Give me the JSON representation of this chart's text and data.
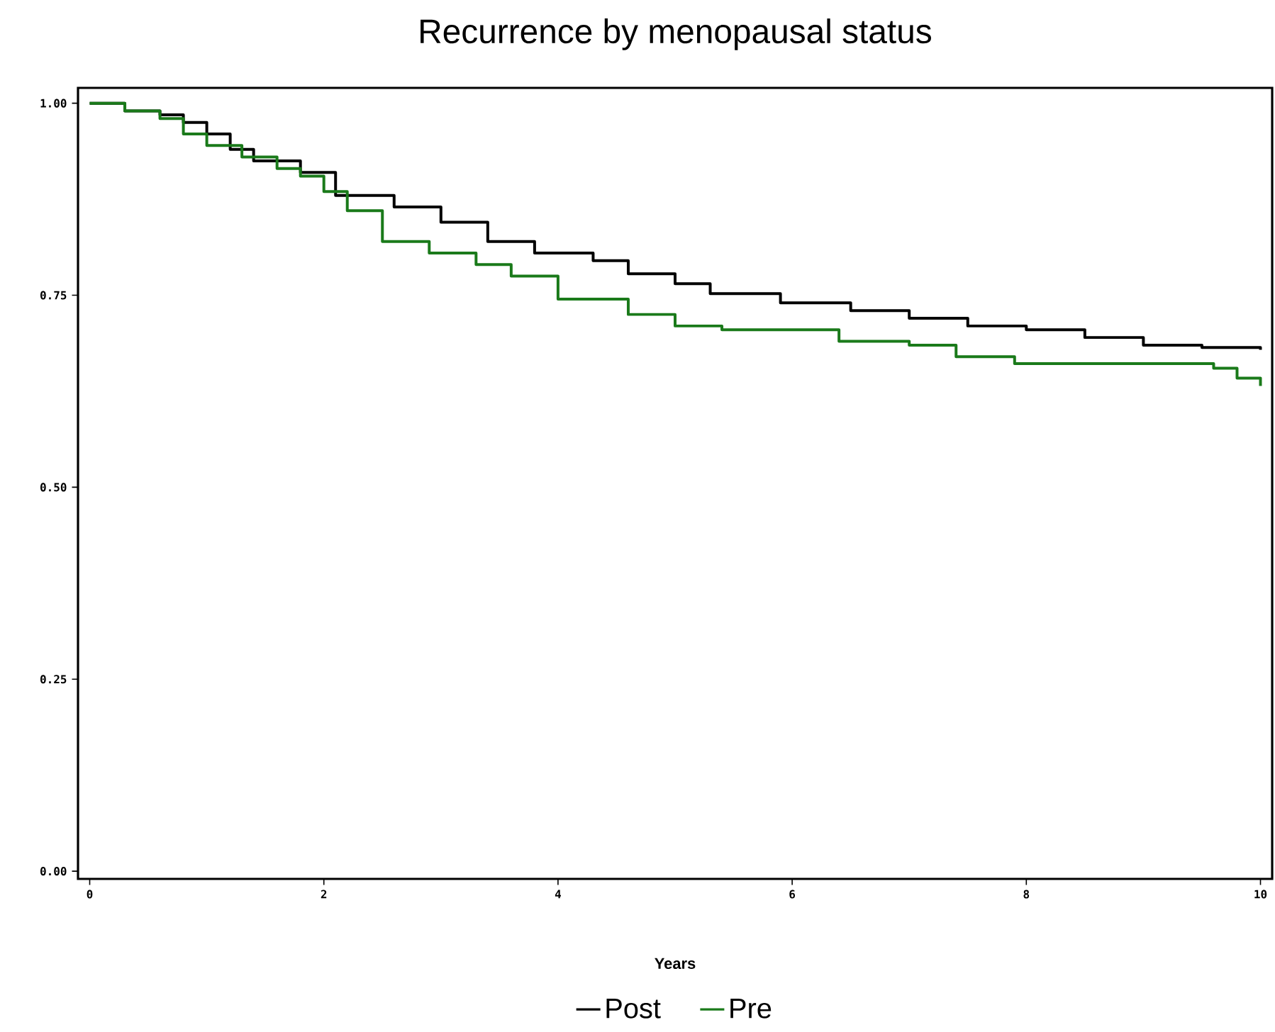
{
  "chart_data": {
    "type": "step",
    "title": "Recurrence by menopausal status",
    "xlabel": "Years",
    "xlim": [
      -0.1,
      10.1
    ],
    "ylim": [
      -0.01,
      1.02
    ],
    "xticks": [
      0,
      2,
      4,
      6,
      8,
      10
    ],
    "yticks": [
      {
        "value": 0,
        "label": "0.00"
      },
      {
        "value": 0.25,
        "label": "0.25"
      },
      {
        "value": 0.5,
        "label": "0.50"
      },
      {
        "value": 0.75,
        "label": "0.75"
      },
      {
        "value": 1,
        "label": "1.00"
      }
    ],
    "grid": false,
    "legend": "bottom",
    "marker": "none",
    "line_style": "solid",
    "series": [
      {
        "name": "Post",
        "color": "#000000",
        "x": [
          0,
          0.3,
          0.6,
          0.8,
          1.0,
          1.2,
          1.4,
          1.8,
          2.1,
          2.6,
          3.0,
          3.4,
          3.8,
          4.3,
          4.6,
          5.0,
          5.3,
          5.9,
          6.5,
          7.0,
          7.5,
          8.0,
          8.5,
          9.0,
          9.5,
          10.0
        ],
        "values": [
          1.0,
          0.99,
          0.985,
          0.975,
          0.96,
          0.94,
          0.925,
          0.91,
          0.88,
          0.865,
          0.845,
          0.82,
          0.805,
          0.795,
          0.778,
          0.765,
          0.752,
          0.74,
          0.73,
          0.72,
          0.71,
          0.705,
          0.695,
          0.685,
          0.682,
          0.679
        ]
      },
      {
        "name": "Pre",
        "color": "#1a7a1a",
        "x": [
          0,
          0.3,
          0.6,
          0.8,
          1.0,
          1.3,
          1.6,
          1.8,
          2.0,
          2.2,
          2.5,
          2.9,
          3.3,
          3.6,
          4.0,
          4.6,
          5.0,
          5.4,
          6.4,
          7.0,
          7.4,
          7.9,
          9.6,
          9.8,
          10.0
        ],
        "values": [
          1.0,
          0.99,
          0.98,
          0.96,
          0.945,
          0.93,
          0.915,
          0.905,
          0.885,
          0.86,
          0.82,
          0.805,
          0.79,
          0.775,
          0.745,
          0.725,
          0.71,
          0.705,
          0.69,
          0.685,
          0.67,
          0.661,
          0.655,
          0.642,
          0.632
        ]
      }
    ]
  }
}
